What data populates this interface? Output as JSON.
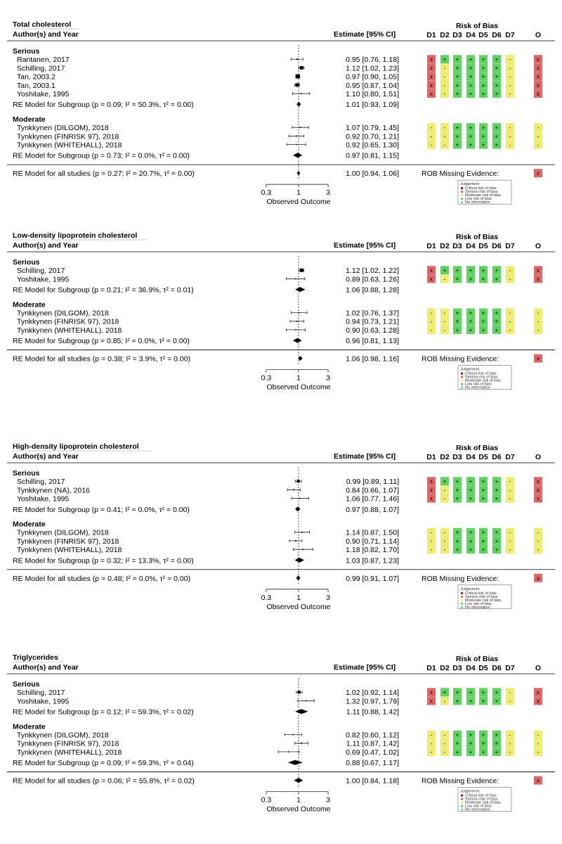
{
  "colors": {
    "high": "#e06666",
    "some": "#ecec6e",
    "low": "#5fd35f",
    "line": "#000000"
  },
  "labels": {
    "author_year": "Author(s) and Year",
    "estimate": "Estimate [95% CI]",
    "risk_of_bias": "Risk of Bias",
    "domains": [
      "D1",
      "D2",
      "D3",
      "D4",
      "D5",
      "D6",
      "D7"
    ],
    "overall": "O",
    "rob_missing": "ROB Missing Evidence:",
    "observed_outcome": "Observed Outcome",
    "legend_title": "Judgement",
    "legend_items": [
      {
        "label": "Critical risk of bias",
        "color": "#8b1a1a"
      },
      {
        "label": "Serious risk of bias",
        "color": "#e06666"
      },
      {
        "label": "Moderate risk of bias",
        "color": "#ecec6e"
      },
      {
        "label": "Low risk of bias",
        "color": "#5fd35f"
      },
      {
        "label": "No information",
        "color": "#6ecbe6"
      }
    ]
  },
  "chart_data": [
    {
      "type": "forest",
      "title": "Total cholesterol",
      "xticks": [
        "0.3",
        "1",
        "3"
      ],
      "xlim": [
        0.3,
        3
      ],
      "groups": [
        {
          "name": "Serious",
          "studies": [
            {
              "label": "Rantanen, 2017",
              "est": 0.95,
              "lo": 0.76,
              "hi": 1.18,
              "ci": "0.95 [0.76, 1.18]",
              "rob": [
                "x",
                "+",
                "+",
                "+",
                "+",
                "+",
                "-"
              ],
              "o": "x"
            },
            {
              "label": "Schilling, 2017",
              "est": 1.12,
              "lo": 1.02,
              "hi": 1.23,
              "ci": "1.12 [1.02, 1.23]",
              "rob": [
                "x",
                "-",
                "+",
                "+",
                "+",
                "+",
                "-"
              ],
              "o": "x"
            },
            {
              "label": "Tan, 2003.2",
              "est": 0.97,
              "lo": 0.9,
              "hi": 1.05,
              "ci": "0.97 [0.90, 1.05]",
              "rob": [
                "x",
                "-",
                "+",
                "+",
                "+",
                "+",
                "-"
              ],
              "o": "x"
            },
            {
              "label": "Tan, 2003.1",
              "est": 0.95,
              "lo": 0.87,
              "hi": 1.04,
              "ci": "0.95 [0.87, 1.04]",
              "rob": [
                "x",
                "-",
                "+",
                "+",
                "+",
                "+",
                "-"
              ],
              "o": "x"
            },
            {
              "label": "Yoshitake, 1995",
              "est": 1.1,
              "lo": 0.8,
              "hi": 1.51,
              "ci": "1.10 [0.80, 1.51]",
              "rob": [
                "x",
                "-",
                "+",
                "+",
                "+",
                "+",
                "-"
              ],
              "o": "x"
            }
          ],
          "summary": {
            "label": "RE Model for Subgroup (p = 0.09; I² = 50.3%, τ² = 0.00)",
            "est": 1.01,
            "lo": 0.93,
            "hi": 1.09,
            "ci": "1.01 [0.93, 1.09]"
          }
        },
        {
          "name": "Moderate",
          "studies": [
            {
              "label": "Tynkkynen (DILGOM), 2018",
              "est": 1.07,
              "lo": 0.79,
              "hi": 1.45,
              "ci": "1.07 [0.79, 1.45]",
              "rob": [
                "-",
                "-",
                "+",
                "+",
                "+",
                "+",
                "-"
              ],
              "o": "-"
            },
            {
              "label": "Tynkkynen (FINRISK 97), 2018",
              "est": 0.92,
              "lo": 0.7,
              "hi": 1.21,
              "ci": "0.92 [0.70, 1.21]",
              "rob": [
                "-",
                "-",
                "+",
                "+",
                "+",
                "+",
                "-"
              ],
              "o": "-"
            },
            {
              "label": "Tynkkynen (WHITEHALL), 2018",
              "est": 0.92,
              "lo": 0.65,
              "hi": 1.3,
              "ci": "0.92 [0.65, 1.30]",
              "rob": [
                "-",
                "-",
                "+",
                "+",
                "+",
                "+",
                "-"
              ],
              "o": "-"
            }
          ],
          "summary": {
            "label": "RE Model for Subgroup (p = 0.73; I² = 0.0%, τ² = 0.00)",
            "est": 0.97,
            "lo": 0.81,
            "hi": 1.15,
            "ci": "0.97 [0.81, 1.15]"
          }
        }
      ],
      "overall": {
        "label": "RE Model for all studies (p = 0.27; I² = 20.7%, τ² = 0.00)",
        "est": 1.0,
        "lo": 0.94,
        "hi": 1.06,
        "ci": "1.00 [0.94, 1.06]",
        "o": "x"
      }
    },
    {
      "type": "forest",
      "title": "Low-density lipoprotein cholesterol",
      "xticks": [
        "0.3",
        "1",
        "3"
      ],
      "xlim": [
        0.3,
        3
      ],
      "groups": [
        {
          "name": "Serious",
          "studies": [
            {
              "label": "Schilling, 2017",
              "est": 1.12,
              "lo": 1.02,
              "hi": 1.22,
              "ci": "1.12 [1.02, 1.22]",
              "rob": [
                "x",
                "+",
                "+",
                "+",
                "+",
                "+",
                "-"
              ],
              "o": "x"
            },
            {
              "label": "Yoshitake, 1995",
              "est": 0.89,
              "lo": 0.63,
              "hi": 1.26,
              "ci": "0.89 [0.63, 1.26]",
              "rob": [
                "x",
                "-",
                "+",
                "+",
                "+",
                "+",
                "-"
              ],
              "o": "x"
            }
          ],
          "summary": {
            "label": "RE Model for Subgroup (p = 0.21; I² = 36.9%, τ² = 0.01)",
            "est": 1.06,
            "lo": 0.88,
            "hi": 1.28,
            "ci": "1.06 [0.88, 1.28]"
          }
        },
        {
          "name": "Moderate",
          "studies": [
            {
              "label": "Tynkkynen (DILGOM), 2018",
              "est": 1.02,
              "lo": 0.76,
              "hi": 1.37,
              "ci": "1.02 [0.76, 1.37]",
              "rob": [
                "-",
                "-",
                "+",
                "+",
                "+",
                "+",
                "-"
              ],
              "o": "-"
            },
            {
              "label": "Tynkkynen (FINRISK 97), 2018",
              "est": 0.94,
              "lo": 0.73,
              "hi": 1.21,
              "ci": "0.94 [0.73, 1.21]",
              "rob": [
                "-",
                "-",
                "+",
                "+",
                "+",
                "+",
                "-"
              ],
              "o": "-"
            },
            {
              "label": "Tynkkynen (WHITEHALL), 2018",
              "est": 0.9,
              "lo": 0.63,
              "hi": 1.28,
              "ci": "0.90 [0.63, 1.28]",
              "rob": [
                "-",
                "-",
                "+",
                "+",
                "+",
                "+",
                "-"
              ],
              "o": "-"
            }
          ],
          "summary": {
            "label": "RE Model for Subgroup (p = 0.85; I² = 0.0%, τ² = 0.00)",
            "est": 0.96,
            "lo": 0.81,
            "hi": 1.13,
            "ci": "0.96 [0.81, 1.13]"
          }
        }
      ],
      "overall": {
        "label": "RE Model for all studies (p = 0.38; I² = 3.9%, τ² = 0.00)",
        "est": 1.06,
        "lo": 0.98,
        "hi": 1.16,
        "ci": "1.06 [0.98, 1.16]",
        "o": "x"
      }
    },
    {
      "type": "forest",
      "title": "High-density lipoprotein cholesterol",
      "xticks": [
        "0.3",
        "1",
        "3"
      ],
      "xlim": [
        0.3,
        3
      ],
      "groups": [
        {
          "name": "Serious",
          "studies": [
            {
              "label": "Schilling, 2017",
              "est": 0.99,
              "lo": 0.89,
              "hi": 1.11,
              "ci": "0.99 [0.89, 1.11]",
              "rob": [
                "x",
                "+",
                "+",
                "+",
                "+",
                "+",
                "-"
              ],
              "o": "x"
            },
            {
              "label": "Tynkkynen (NA), 2016",
              "est": 0.84,
              "lo": 0.66,
              "hi": 1.07,
              "ci": "0.84 [0.66, 1.07]",
              "rob": [
                "x",
                "-",
                "+",
                "+",
                "+",
                "+",
                "-"
              ],
              "o": "x"
            },
            {
              "label": "Yoshitake, 1995",
              "est": 1.06,
              "lo": 0.77,
              "hi": 1.46,
              "ci": "1.06 [0.77, 1.46]",
              "rob": [
                "x",
                "-",
                "+",
                "+",
                "+",
                "+",
                "-"
              ],
              "o": "x"
            }
          ],
          "summary": {
            "label": "RE Model for Subgroup (p = 0.41; I² = 0.0%, τ² = 0.00)",
            "est": 0.97,
            "lo": 0.88,
            "hi": 1.07,
            "ci": "0.97 [0.88, 1.07]"
          }
        },
        {
          "name": "Moderate",
          "studies": [
            {
              "label": "Tynkkynen (DILGOM), 2018",
              "est": 1.14,
              "lo": 0.87,
              "hi": 1.5,
              "ci": "1.14 [0.87, 1.50]",
              "rob": [
                "-",
                "-",
                "+",
                "+",
                "+",
                "+",
                "-"
              ],
              "o": "-"
            },
            {
              "label": "Tynkkynen (FINRISK 97), 2018",
              "est": 0.9,
              "lo": 0.71,
              "hi": 1.14,
              "ci": "0.90 [0.71, 1.14]",
              "rob": [
                "-",
                "-",
                "+",
                "+",
                "+",
                "+",
                "-"
              ],
              "o": "-"
            },
            {
              "label": "Tynkkynen (WHITEHALL), 2018",
              "est": 1.18,
              "lo": 0.82,
              "hi": 1.7,
              "ci": "1.18 [0.82, 1.70]",
              "rob": [
                "-",
                "-",
                "+",
                "+",
                "+",
                "+",
                "-"
              ],
              "o": "-"
            }
          ],
          "summary": {
            "label": "RE Model for Subgroup (p = 0.32; I² = 13.3%, τ² = 0.00)",
            "est": 1.03,
            "lo": 0.87,
            "hi": 1.23,
            "ci": "1.03 [0.87, 1.23]"
          }
        }
      ],
      "overall": {
        "label": "RE Model for all studies (p = 0.48; I² = 0.0%, τ² = 0.00)",
        "est": 0.99,
        "lo": 0.91,
        "hi": 1.07,
        "ci": "0.99 [0.91, 1.07]",
        "o": "x"
      }
    },
    {
      "type": "forest",
      "title": "Triglycerides",
      "xticks": [
        "0.3",
        "1",
        "3"
      ],
      "xlim": [
        0.3,
        3
      ],
      "groups": [
        {
          "name": "Serious",
          "studies": [
            {
              "label": "Schilling, 2017",
              "est": 1.02,
              "lo": 0.92,
              "hi": 1.14,
              "ci": "1.02 [0.92, 1.14]",
              "rob": [
                "x",
                "+",
                "+",
                "+",
                "+",
                "+",
                "-"
              ],
              "o": "x"
            },
            {
              "label": "Yoshitake, 1995",
              "est": 1.32,
              "lo": 0.97,
              "hi": 1.79,
              "ci": "1.32 [0.97, 1.79]",
              "rob": [
                "x",
                "-",
                "+",
                "+",
                "+",
                "+",
                "-"
              ],
              "o": "x"
            }
          ],
          "summary": {
            "label": "RE Model for Subgroup (p = 0.12; I² = 59.3%, τ² = 0.02)",
            "est": 1.11,
            "lo": 0.88,
            "hi": 1.42,
            "ci": "1.11 [0.88, 1.42]"
          }
        },
        {
          "name": "Moderate",
          "studies": [
            {
              "label": "Tynkkynen (DILGOM), 2018",
              "est": 0.82,
              "lo": 0.6,
              "hi": 1.12,
              "ci": "0.82 [0.60, 1.12]",
              "rob": [
                "-",
                "-",
                "+",
                "+",
                "+",
                "+",
                "-"
              ],
              "o": "-"
            },
            {
              "label": "Tynkkynen (FINRISK 97), 2018",
              "est": 1.11,
              "lo": 0.87,
              "hi": 1.42,
              "ci": "1.11 [0.87, 1.42]",
              "rob": [
                "-",
                "-",
                "+",
                "+",
                "+",
                "+",
                "-"
              ],
              "o": "-"
            },
            {
              "label": "Tynkkynen (WHITEHALL), 2018",
              "est": 0.69,
              "lo": 0.47,
              "hi": 1.02,
              "ci": "0.69 [0.47, 1.02]",
              "rob": [
                "-",
                "-",
                "+",
                "+",
                "+",
                "+",
                "-"
              ],
              "o": "-"
            }
          ],
          "summary": {
            "label": "RE Model for Subgroup (p = 0.09; I² = 59.3%, τ² = 0.04)",
            "est": 0.88,
            "lo": 0.67,
            "hi": 1.17,
            "ci": "0.88 [0.67, 1.17]"
          }
        }
      ],
      "overall": {
        "label": "RE Model for all studies (p = 0.06; I² = 55.8%, τ² = 0.02)",
        "est": 1.0,
        "lo": 0.84,
        "hi": 1.18,
        "ci": "1.00 [0.84, 1.18]",
        "o": "x"
      }
    }
  ]
}
